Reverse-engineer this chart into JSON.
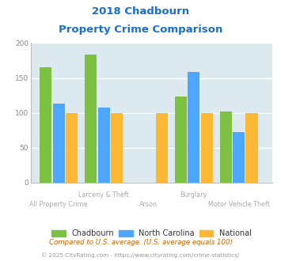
{
  "title_line1": "2018 Chadbourn",
  "title_line2": "Property Crime Comparison",
  "title_color": "#1a6fcc",
  "categories": [
    "All Property Crime",
    "Larceny & Theft",
    "Arson",
    "Burglary",
    "Motor Vehicle Theft"
  ],
  "series": {
    "Chadbourn": [
      165,
      184,
      0,
      123,
      102
    ],
    "North Carolina": [
      113,
      108,
      0,
      159,
      73
    ],
    "National": [
      100,
      100,
      100,
      100,
      100
    ]
  },
  "colors": {
    "Chadbourn": "#7dc142",
    "North Carolina": "#4da6ff",
    "National": "#ffb833"
  },
  "ylim": [
    0,
    200
  ],
  "yticks": [
    0,
    50,
    100,
    150,
    200
  ],
  "plot_bg": "#dce9ef",
  "grid_color": "#ffffff",
  "xlabel_top_color": "#aaaaaa",
  "xlabel_bot_color": "#aaaaaa",
  "footnote1": "Compared to U.S. average. (U.S. average equals 100)",
  "footnote2": "© 2025 CityRating.com - https://www.cityrating.com/crime-statistics/",
  "footnote1_color": "#cc6600",
  "footnote2_color": "#999999",
  "legend_label_color": "#333333",
  "bar_width": 0.18,
  "group_positions": [
    0.32,
    1.0,
    1.68,
    2.36,
    3.04
  ],
  "xlim": [
    -0.1,
    3.55
  ],
  "top_labels": [
    "",
    "Larceny & Theft",
    "",
    "Burglary",
    ""
  ],
  "bot_labels": [
    "All Property Crime",
    "",
    "Arson",
    "",
    "Motor Vehicle Theft"
  ]
}
